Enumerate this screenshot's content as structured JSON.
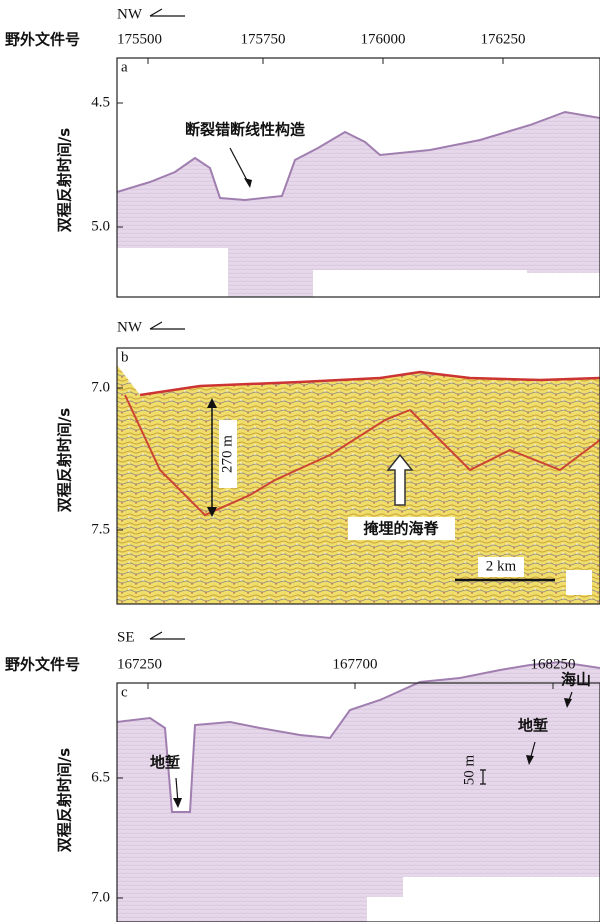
{
  "panels": [
    {
      "direction": "NW",
      "file_label": "野外文件号",
      "label": "a",
      "x_ticks": [
        "175500",
        "175750",
        "176000",
        "176250"
      ],
      "y_label": "双程反射时间/s",
      "y_ticks": [
        "4.5",
        "5.0"
      ],
      "annotations": [
        "断裂错断线性构造"
      ]
    },
    {
      "direction": "NW",
      "label": "b",
      "y_label": "双程反射时间/s",
      "y_ticks": [
        "7.0",
        "7.5"
      ],
      "annotations": [
        "270 m",
        "掩埋的海脊",
        "2 km"
      ]
    },
    {
      "direction": "SE",
      "file_label": "野外文件号",
      "label": "c",
      "x_ticks": [
        "167250",
        "167700",
        "168250"
      ],
      "y_label": "双程反射时间/s",
      "y_ticks": [
        "6.5",
        "7.0"
      ],
      "annotations": [
        "地堑",
        "50 m",
        "地堑",
        "海山"
      ]
    }
  ]
}
